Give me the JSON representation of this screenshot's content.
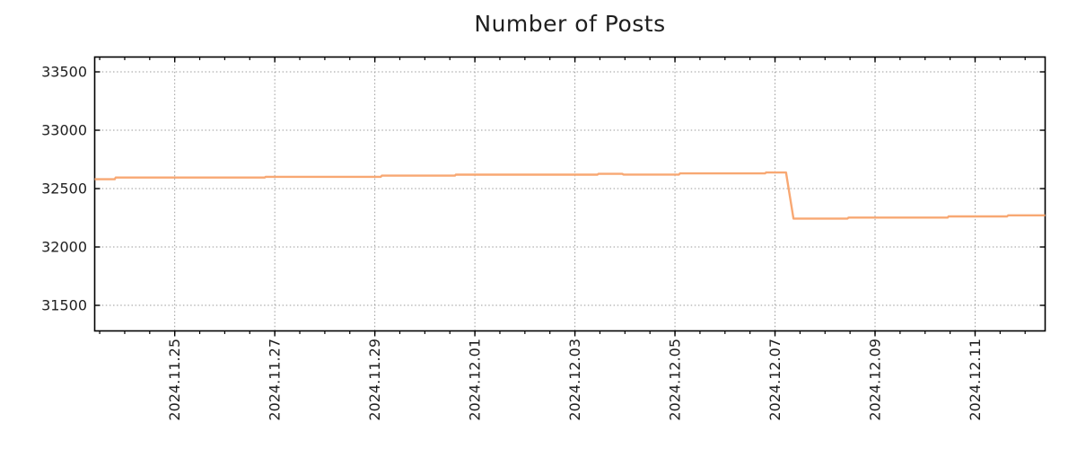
{
  "chart_data": {
    "type": "line",
    "title": "Number of Posts",
    "colors": {
      "line": "#f8a873",
      "grid": "#9b9b9b",
      "axis": "#000000",
      "text": "#1f1f1f",
      "background": "#ffffff"
    },
    "legend": "none",
    "grid": "dotted, horizontal at y ticks and vertical at x major ticks",
    "x_axis": {
      "span_days": 19,
      "minor_tick_start": 0.1,
      "minor_tick_step": 0.5,
      "major_ticks": [
        {
          "t": 1.6,
          "label": "2024.11.25"
        },
        {
          "t": 3.6,
          "label": "2024.11.27"
        },
        {
          "t": 5.6,
          "label": "2024.11.29"
        },
        {
          "t": 7.6,
          "label": "2024.12.01"
        },
        {
          "t": 9.6,
          "label": "2024.12.03"
        },
        {
          "t": 11.6,
          "label": "2024.12.05"
        },
        {
          "t": 13.6,
          "label": "2024.12.07"
        },
        {
          "t": 15.6,
          "label": "2024.12.09"
        },
        {
          "t": 17.6,
          "label": "2024.12.11"
        }
      ]
    },
    "y_axis": {
      "min": 31281,
      "max": 33627,
      "ticks": [
        {
          "v": 31500,
          "label": "31500"
        },
        {
          "v": 32000,
          "label": "32000"
        },
        {
          "v": 32500,
          "label": "32500"
        },
        {
          "v": 33000,
          "label": "33000"
        },
        {
          "v": 33500,
          "label": "33500"
        }
      ]
    },
    "series": [
      {
        "name": "Number of Posts",
        "color": "#f8a873",
        "points": [
          {
            "t": 0.0,
            "v": 32580
          },
          {
            "t": 0.4,
            "v": 32580
          },
          {
            "t": 0.42,
            "v": 32595
          },
          {
            "t": 3.4,
            "v": 32595
          },
          {
            "t": 3.42,
            "v": 32601
          },
          {
            "t": 5.72,
            "v": 32601
          },
          {
            "t": 5.74,
            "v": 32611
          },
          {
            "t": 7.2,
            "v": 32611
          },
          {
            "t": 7.22,
            "v": 32619
          },
          {
            "t": 10.05,
            "v": 32619
          },
          {
            "t": 10.07,
            "v": 32626
          },
          {
            "t": 10.55,
            "v": 32626
          },
          {
            "t": 10.57,
            "v": 32620
          },
          {
            "t": 11.68,
            "v": 32620
          },
          {
            "t": 11.7,
            "v": 32630
          },
          {
            "t": 13.4,
            "v": 32630
          },
          {
            "t": 13.42,
            "v": 32638
          },
          {
            "t": 13.82,
            "v": 32638
          },
          {
            "t": 13.97,
            "v": 32243
          },
          {
            "t": 15.05,
            "v": 32243
          },
          {
            "t": 15.07,
            "v": 32252
          },
          {
            "t": 17.05,
            "v": 32252
          },
          {
            "t": 17.07,
            "v": 32262
          },
          {
            "t": 18.24,
            "v": 32262
          },
          {
            "t": 18.26,
            "v": 32271
          },
          {
            "t": 19.0,
            "v": 32271
          }
        ]
      }
    ]
  }
}
